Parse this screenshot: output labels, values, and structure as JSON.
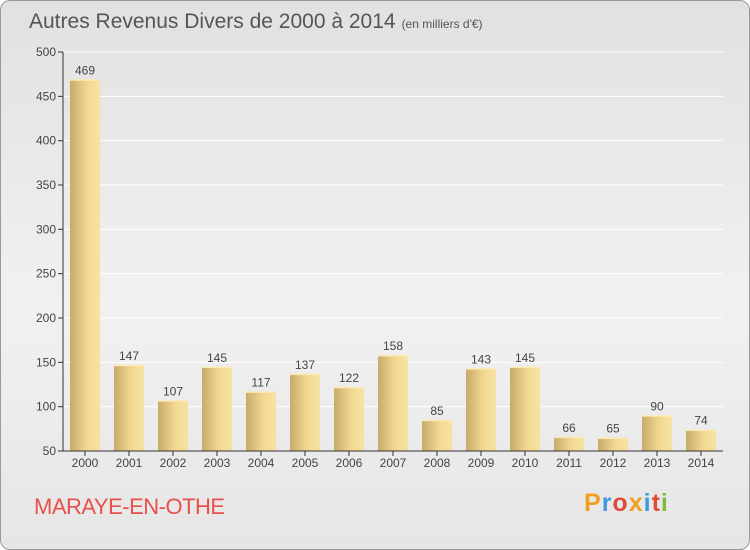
{
  "title": "Autres Revenus Divers de 2000 à 2014",
  "subtitle": "(en milliers d'€)",
  "location": "MARAYE-EN-OTHE",
  "logo": {
    "letters": [
      "P",
      "r",
      "o",
      "x",
      "i",
      "t",
      "i"
    ],
    "colors": [
      "#f0a020",
      "#3d9be0",
      "#e04a3c",
      "#f0a020",
      "#3d9be0",
      "#e04a3c",
      "#7cbd3b"
    ]
  },
  "colors": {
    "bar_light": "#f7e1a0",
    "bar_dark": "#c8aa6a",
    "grid": "#ffffff",
    "axis": "#333333"
  },
  "chart_data": {
    "type": "bar",
    "title": "Autres Revenus Divers de 2000 à 2014",
    "categories": [
      "2000",
      "2001",
      "2002",
      "2003",
      "2004",
      "2005",
      "2006",
      "2007",
      "2008",
      "2009",
      "2010",
      "2011",
      "2012",
      "2013",
      "2014"
    ],
    "values": [
      469,
      147,
      107,
      145,
      117,
      137,
      122,
      158,
      85,
      143,
      145,
      66,
      65,
      90,
      74
    ],
    "ylim": [
      50,
      500
    ],
    "yticks": [
      50,
      100,
      150,
      200,
      250,
      300,
      350,
      400,
      450,
      500
    ],
    "grid": true
  }
}
